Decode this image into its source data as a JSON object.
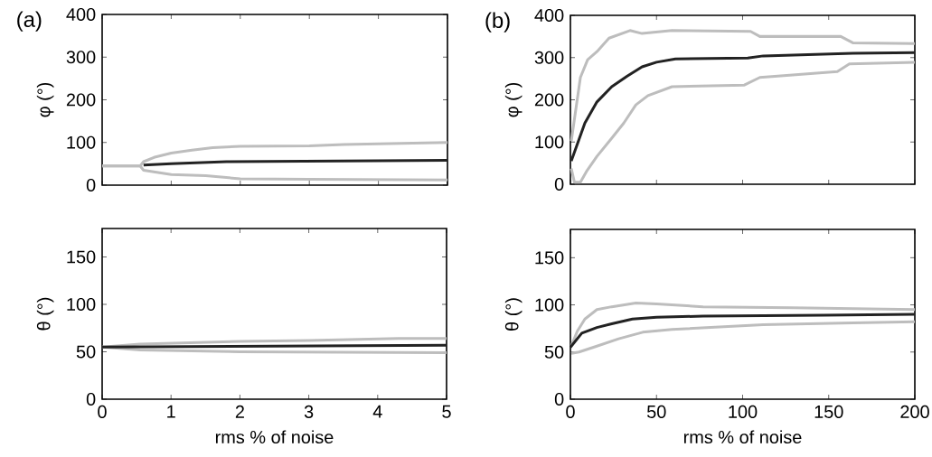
{
  "chart_data": [
    {
      "type": "line",
      "ylabel": "φ (°)",
      "annotations": [
        "(a)"
      ],
      "xlim": [
        0,
        5
      ],
      "ylim": [
        0,
        400
      ],
      "xticks": [
        0,
        1,
        2,
        3,
        4,
        5
      ],
      "yticks": [
        0,
        100,
        200,
        300,
        400
      ],
      "tick_labels": "y",
      "series": [
        {
          "color": "#bdbdbd",
          "x": [
            0,
            0.55,
            0.6,
            0.75,
            1.0,
            1.3,
            1.6,
            2.0,
            3.0,
            3.5,
            4.0,
            5.0
          ],
          "values": [
            45,
            45,
            55,
            65,
            75,
            82,
            88,
            91,
            92,
            95,
            97,
            100
          ]
        },
        {
          "color": "#bdbdbd",
          "x": [
            0,
            0.55,
            0.6,
            1.0,
            1.5,
            2.0,
            3.0,
            5.0
          ],
          "values": [
            45,
            45,
            35,
            25,
            22,
            15,
            14,
            12
          ]
        },
        {
          "color": "#222222",
          "x": [
            0.6,
            1.0,
            1.8,
            4.0,
            5.0
          ],
          "values": [
            47,
            50,
            55,
            57,
            58
          ]
        }
      ]
    },
    {
      "type": "line",
      "ylabel": "φ (°)",
      "annotations": [
        "(b)"
      ],
      "xlim": [
        0,
        200
      ],
      "ylim": [
        0,
        400
      ],
      "xticks": [
        0,
        50,
        100,
        150,
        200
      ],
      "yticks": [
        0,
        100,
        200,
        300,
        400
      ],
      "tick_labels": "y",
      "series": [
        {
          "color": "#bdbdbd",
          "x": [
            0.5,
            5.8,
            10,
            15.4,
            22.4,
            34.6,
            41.6,
            59,
            104.6,
            110,
            157,
            164,
            200
          ],
          "values": [
            102,
            253,
            295,
            314,
            346,
            364,
            357,
            364,
            362,
            350,
            350,
            335,
            333
          ]
        },
        {
          "color": "#bdbdbd",
          "x": [
            0.5,
            2.3,
            5.8,
            9.3,
            15.4,
            24,
            31,
            38,
            45,
            59,
            101,
            110,
            155,
            162,
            200
          ],
          "values": [
            37,
            5,
            5,
            30,
            66,
            109,
            145,
            188,
            210,
            231,
            235,
            253,
            267,
            285,
            289
          ]
        },
        {
          "color": "#222222",
          "x": [
            0.5,
            8.4,
            15.4,
            24,
            33,
            41.6,
            50,
            61,
            103,
            112,
            164,
            200
          ],
          "values": [
            55,
            145,
            195,
            231,
            256,
            278,
            289,
            297,
            299,
            304,
            310,
            312
          ]
        }
      ]
    },
    {
      "type": "line",
      "xlabel": "rms % of noise",
      "ylabel": "θ (°)",
      "xlim": [
        0,
        5
      ],
      "ylim": [
        0,
        180
      ],
      "xticks": [
        0,
        1,
        2,
        3,
        4,
        5
      ],
      "yticks": [
        0,
        50,
        100,
        150
      ],
      "series": [
        {
          "color": "#bdbdbd",
          "x": [
            0,
            0.55,
            2.0,
            3.0,
            4.3,
            5.0
          ],
          "values": [
            55,
            58,
            61,
            62,
            64,
            64
          ]
        },
        {
          "color": "#bdbdbd",
          "x": [
            0,
            0.55,
            2.0,
            5.0
          ],
          "values": [
            55,
            52,
            50,
            49
          ]
        },
        {
          "color": "#222222",
          "x": [
            0,
            5
          ],
          "values": [
            55,
            57
          ]
        }
      ]
    },
    {
      "type": "line",
      "xlabel": "rms % of noise",
      "ylabel": "θ (°)",
      "xlim": [
        0,
        200
      ],
      "ylim": [
        0,
        180
      ],
      "xticks": [
        0,
        50,
        100,
        150,
        200
      ],
      "yticks": [
        0,
        50,
        100,
        150
      ],
      "series": [
        {
          "color": "#bdbdbd",
          "x": [
            0.5,
            4,
            8.4,
            15.4,
            24,
            38,
            50,
            77,
            129,
            200
          ],
          "values": [
            56.5,
            72,
            85,
            95,
            98,
            102,
            101,
            98,
            97,
            95
          ]
        },
        {
          "color": "#bdbdbd",
          "x": [
            0.5,
            5,
            15,
            28,
            42,
            59,
            112,
            164,
            200
          ],
          "values": [
            48.5,
            50,
            56,
            64,
            71,
            74,
            79,
            81,
            82
          ]
        },
        {
          "color": "#222222",
          "x": [
            0,
            6.6,
            15.4,
            24,
            36,
            50,
            77,
            147,
            200
          ],
          "values": [
            55,
            70,
            76,
            80,
            85,
            87,
            88,
            89,
            90
          ]
        }
      ]
    }
  ]
}
